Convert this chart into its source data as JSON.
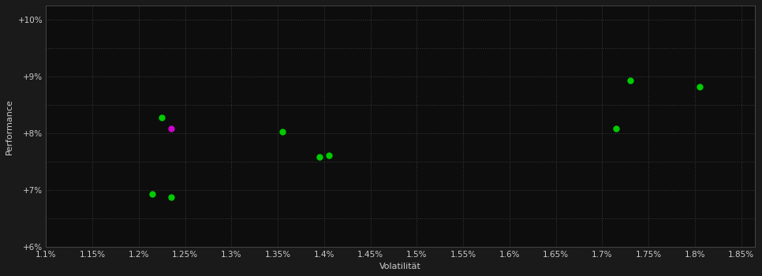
{
  "background_color": "#1a1a1a",
  "plot_bg_color": "#0d0d0d",
  "grid_color": "#3a3a3a",
  "xlabel": "Volatilität",
  "ylabel": "Performance",
  "xlim": [
    0.011,
    0.01865
  ],
  "ylim": [
    0.06,
    0.1025
  ],
  "xticks": [
    0.011,
    0.0115,
    0.012,
    0.0125,
    0.013,
    0.0135,
    0.014,
    0.0145,
    0.015,
    0.0155,
    0.016,
    0.0165,
    0.017,
    0.0175,
    0.018,
    0.0185
  ],
  "yticks": [
    0.06,
    0.065,
    0.07,
    0.075,
    0.08,
    0.085,
    0.09,
    0.095,
    0.1
  ],
  "ytick_labels": [
    "+6%",
    "",
    "+7%",
    "",
    "+8%",
    "",
    "+9%",
    "",
    "+10%"
  ],
  "xtick_labels": [
    "1.1%",
    "1.15%",
    "1.2%",
    "1.25%",
    "1.3%",
    "1.35%",
    "1.4%",
    "1.45%",
    "1.5%",
    "1.55%",
    "1.6%",
    "1.65%",
    "1.7%",
    "1.75%",
    "1.8%",
    "1.85%"
  ],
  "green_points": [
    [
      0.01225,
      0.0828
    ],
    [
      0.01355,
      0.0803
    ],
    [
      0.01395,
      0.0758
    ],
    [
      0.01405,
      0.0762
    ],
    [
      0.01215,
      0.0693
    ],
    [
      0.01235,
      0.0688
    ],
    [
      0.01715,
      0.0808
    ],
    [
      0.0173,
      0.0893
    ],
    [
      0.01805,
      0.0882
    ]
  ],
  "magenta_points": [
    [
      0.01235,
      0.0808
    ]
  ],
  "point_size": 25,
  "tick_color": "#cccccc",
  "tick_fontsize": 7.5,
  "axis_label_fontsize": 8,
  "axis_label_color": "#cccccc"
}
